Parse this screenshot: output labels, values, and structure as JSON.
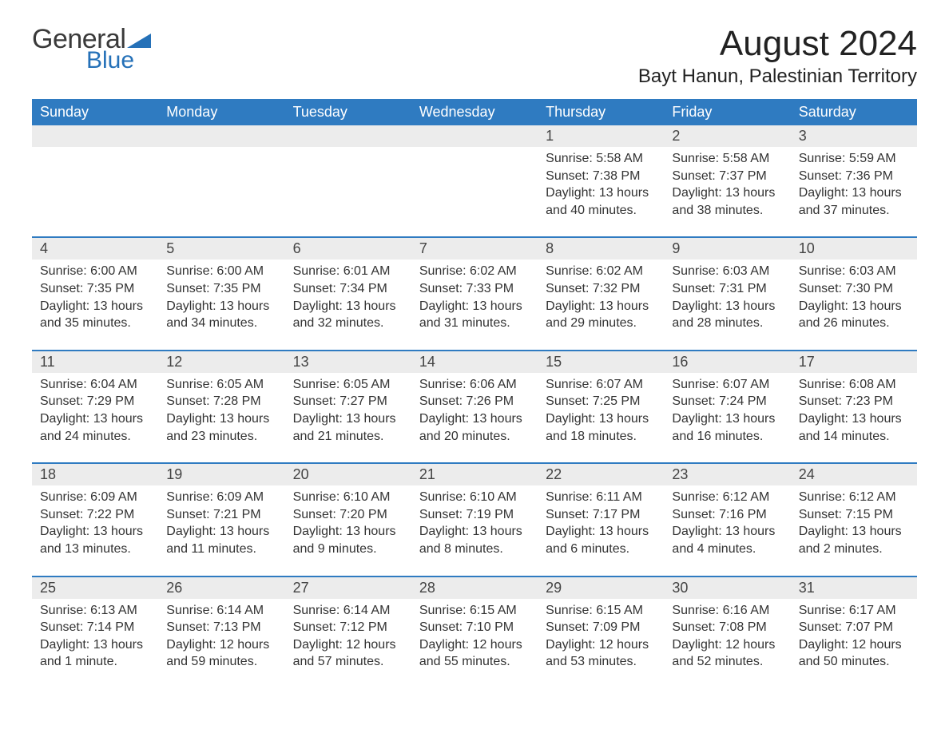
{
  "logo": {
    "general": "General",
    "blue": "Blue",
    "accent": "#2571b8"
  },
  "title": "August 2024",
  "location": "Bayt Hanun, Palestinian Territory",
  "colors": {
    "header_bg": "#2f7bc1",
    "header_text": "#ffffff",
    "band_bg": "#ececec",
    "rule": "#2f7bc1",
    "body_text": "#333333",
    "page_bg": "#ffffff"
  },
  "weekdays": [
    "Sunday",
    "Monday",
    "Tuesday",
    "Wednesday",
    "Thursday",
    "Friday",
    "Saturday"
  ],
  "weeks": [
    [
      null,
      null,
      null,
      null,
      {
        "n": "1",
        "sr": "5:58 AM",
        "ss": "7:38 PM",
        "dl": "13 hours and 40 minutes."
      },
      {
        "n": "2",
        "sr": "5:58 AM",
        "ss": "7:37 PM",
        "dl": "13 hours and 38 minutes."
      },
      {
        "n": "3",
        "sr": "5:59 AM",
        "ss": "7:36 PM",
        "dl": "13 hours and 37 minutes."
      }
    ],
    [
      {
        "n": "4",
        "sr": "6:00 AM",
        "ss": "7:35 PM",
        "dl": "13 hours and 35 minutes."
      },
      {
        "n": "5",
        "sr": "6:00 AM",
        "ss": "7:35 PM",
        "dl": "13 hours and 34 minutes."
      },
      {
        "n": "6",
        "sr": "6:01 AM",
        "ss": "7:34 PM",
        "dl": "13 hours and 32 minutes."
      },
      {
        "n": "7",
        "sr": "6:02 AM",
        "ss": "7:33 PM",
        "dl": "13 hours and 31 minutes."
      },
      {
        "n": "8",
        "sr": "6:02 AM",
        "ss": "7:32 PM",
        "dl": "13 hours and 29 minutes."
      },
      {
        "n": "9",
        "sr": "6:03 AM",
        "ss": "7:31 PM",
        "dl": "13 hours and 28 minutes."
      },
      {
        "n": "10",
        "sr": "6:03 AM",
        "ss": "7:30 PM",
        "dl": "13 hours and 26 minutes."
      }
    ],
    [
      {
        "n": "11",
        "sr": "6:04 AM",
        "ss": "7:29 PM",
        "dl": "13 hours and 24 minutes."
      },
      {
        "n": "12",
        "sr": "6:05 AM",
        "ss": "7:28 PM",
        "dl": "13 hours and 23 minutes."
      },
      {
        "n": "13",
        "sr": "6:05 AM",
        "ss": "7:27 PM",
        "dl": "13 hours and 21 minutes."
      },
      {
        "n": "14",
        "sr": "6:06 AM",
        "ss": "7:26 PM",
        "dl": "13 hours and 20 minutes."
      },
      {
        "n": "15",
        "sr": "6:07 AM",
        "ss": "7:25 PM",
        "dl": "13 hours and 18 minutes."
      },
      {
        "n": "16",
        "sr": "6:07 AM",
        "ss": "7:24 PM",
        "dl": "13 hours and 16 minutes."
      },
      {
        "n": "17",
        "sr": "6:08 AM",
        "ss": "7:23 PM",
        "dl": "13 hours and 14 minutes."
      }
    ],
    [
      {
        "n": "18",
        "sr": "6:09 AM",
        "ss": "7:22 PM",
        "dl": "13 hours and 13 minutes."
      },
      {
        "n": "19",
        "sr": "6:09 AM",
        "ss": "7:21 PM",
        "dl": "13 hours and 11 minutes."
      },
      {
        "n": "20",
        "sr": "6:10 AM",
        "ss": "7:20 PM",
        "dl": "13 hours and 9 minutes."
      },
      {
        "n": "21",
        "sr": "6:10 AM",
        "ss": "7:19 PM",
        "dl": "13 hours and 8 minutes."
      },
      {
        "n": "22",
        "sr": "6:11 AM",
        "ss": "7:17 PM",
        "dl": "13 hours and 6 minutes."
      },
      {
        "n": "23",
        "sr": "6:12 AM",
        "ss": "7:16 PM",
        "dl": "13 hours and 4 minutes."
      },
      {
        "n": "24",
        "sr": "6:12 AM",
        "ss": "7:15 PM",
        "dl": "13 hours and 2 minutes."
      }
    ],
    [
      {
        "n": "25",
        "sr": "6:13 AM",
        "ss": "7:14 PM",
        "dl": "13 hours and 1 minute."
      },
      {
        "n": "26",
        "sr": "6:14 AM",
        "ss": "7:13 PM",
        "dl": "12 hours and 59 minutes."
      },
      {
        "n": "27",
        "sr": "6:14 AM",
        "ss": "7:12 PM",
        "dl": "12 hours and 57 minutes."
      },
      {
        "n": "28",
        "sr": "6:15 AM",
        "ss": "7:10 PM",
        "dl": "12 hours and 55 minutes."
      },
      {
        "n": "29",
        "sr": "6:15 AM",
        "ss": "7:09 PM",
        "dl": "12 hours and 53 minutes."
      },
      {
        "n": "30",
        "sr": "6:16 AM",
        "ss": "7:08 PM",
        "dl": "12 hours and 52 minutes."
      },
      {
        "n": "31",
        "sr": "6:17 AM",
        "ss": "7:07 PM",
        "dl": "12 hours and 50 minutes."
      }
    ]
  ],
  "labels": {
    "sunrise": "Sunrise: ",
    "sunset": "Sunset: ",
    "daylight": "Daylight: "
  }
}
